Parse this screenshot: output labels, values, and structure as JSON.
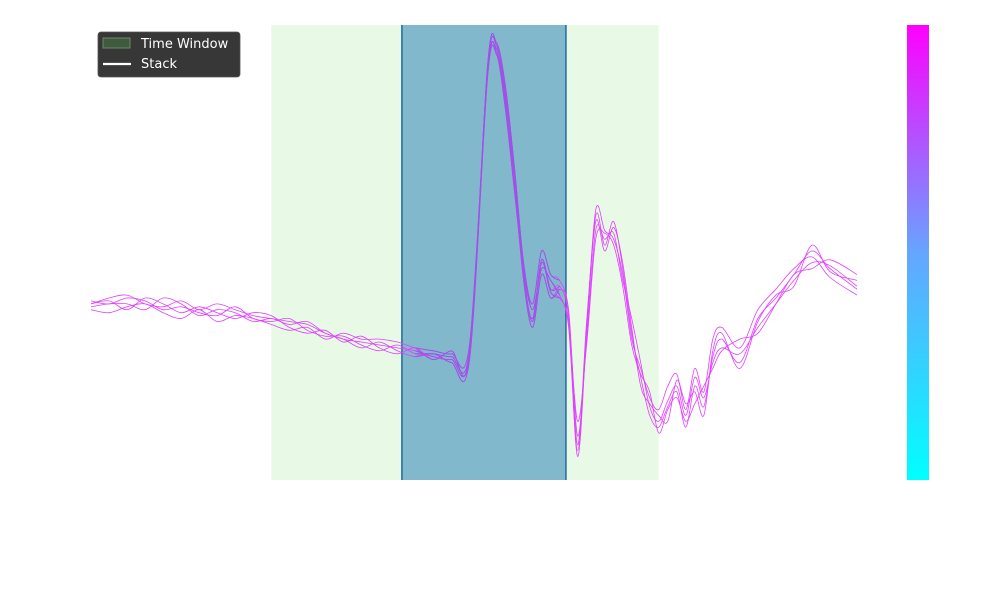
{
  "chart_data": {
    "type": "line",
    "title": "",
    "xlabel": "",
    "ylabel": "",
    "grid": false,
    "axes_visible": false,
    "legend_placement": "top-left",
    "legend": [
      {
        "label": "Time Window",
        "kind": "patch",
        "color": "#3f5a3f"
      },
      {
        "label": "Stack",
        "kind": "line",
        "color": "#ffffff"
      }
    ],
    "xlim": [
      0,
      850
    ],
    "ylim": [
      -0.6,
      0.95
    ],
    "regions": [
      {
        "name": "outer-window",
        "x": [
          200,
          630
        ],
        "color": "#e8fae6"
      },
      {
        "name": "inner-window",
        "x": [
          345,
          527
        ],
        "color": "#82b8cc",
        "edge_color": "#2b6fa8"
      }
    ],
    "colorbar": {
      "colors": [
        "#00ffff",
        "#66a5ff",
        "#ff00ff"
      ]
    },
    "trace_color": "#e040ff",
    "trace_color_window": "#9a52e6",
    "traces": [
      {
        "x": [
          0,
          20,
          40,
          60,
          80,
          100,
          120,
          140,
          160,
          180,
          200,
          220,
          240,
          260,
          280,
          300,
          320,
          340,
          360,
          380,
          400,
          420,
          440,
          450,
          460,
          470,
          480,
          490,
          500,
          510,
          520,
          530,
          540,
          550,
          560,
          570,
          580,
          590,
          600,
          610,
          620,
          630,
          640,
          650,
          660,
          670,
          680,
          690,
          700,
          720,
          740,
          760,
          780,
          800,
          820,
          850
        ],
        "y": [
          0,
          0.02,
          0.03,
          0,
          -0.01,
          0.01,
          -0.02,
          0.0,
          -0.02,
          -0.04,
          -0.05,
          -0.06,
          -0.07,
          -0.1,
          -0.12,
          -0.13,
          -0.14,
          -0.15,
          -0.16,
          -0.18,
          -0.19,
          -0.17,
          0.8,
          0.88,
          0.7,
          0.45,
          0.1,
          -0.05,
          0.15,
          0.05,
          0.06,
          -0.05,
          -0.52,
          -0.1,
          0.3,
          0.2,
          0.28,
          0.12,
          -0.1,
          -0.25,
          -0.38,
          -0.42,
          -0.35,
          -0.3,
          -0.42,
          -0.28,
          -0.35,
          -0.18,
          -0.12,
          -0.2,
          -0.05,
          0.02,
          0.1,
          0.18,
          0.12,
          0.05
        ]
      },
      {
        "x": [
          0,
          20,
          40,
          60,
          80,
          100,
          120,
          140,
          160,
          180,
          200,
          220,
          240,
          260,
          280,
          300,
          320,
          340,
          360,
          380,
          400,
          420,
          440,
          450,
          460,
          470,
          480,
          490,
          500,
          510,
          520,
          530,
          540,
          550,
          560,
          570,
          580,
          590,
          600,
          610,
          620,
          630,
          640,
          650,
          660,
          670,
          680,
          690,
          700,
          720,
          740,
          760,
          780,
          800,
          820,
          850
        ],
        "y": [
          0.01,
          0.0,
          0.02,
          0.01,
          -0.02,
          -0.01,
          -0.03,
          -0.04,
          -0.01,
          -0.05,
          -0.06,
          -0.05,
          -0.09,
          -0.11,
          -0.11,
          -0.14,
          -0.16,
          -0.14,
          -0.17,
          -0.17,
          -0.18,
          -0.16,
          0.78,
          0.87,
          0.72,
          0.42,
          0.12,
          -0.02,
          0.12,
          0.08,
          0.03,
          -0.08,
          -0.5,
          -0.08,
          0.32,
          0.25,
          0.22,
          0.1,
          -0.12,
          -0.22,
          -0.32,
          -0.36,
          -0.28,
          -0.24,
          -0.36,
          -0.22,
          -0.3,
          -0.12,
          -0.08,
          -0.15,
          -0.02,
          0.05,
          0.12,
          0.16,
          0.09,
          0.03
        ]
      },
      {
        "x": [
          0,
          20,
          40,
          60,
          80,
          100,
          120,
          140,
          160,
          180,
          200,
          220,
          240,
          260,
          280,
          300,
          320,
          340,
          360,
          380,
          400,
          420,
          440,
          450,
          460,
          470,
          480,
          490,
          500,
          510,
          520,
          530,
          540,
          550,
          560,
          570,
          580,
          590,
          600,
          610,
          620,
          630,
          640,
          650,
          660,
          670,
          680,
          690,
          700,
          720,
          740,
          760,
          780,
          800,
          820,
          850
        ],
        "y": [
          -0.02,
          -0.03,
          -0.01,
          0.0,
          -0.03,
          -0.05,
          -0.02,
          -0.06,
          -0.04,
          -0.05,
          -0.07,
          -0.09,
          -0.08,
          -0.12,
          -0.1,
          -0.12,
          -0.12,
          -0.13,
          -0.15,
          -0.16,
          -0.17,
          -0.14,
          0.79,
          0.86,
          0.68,
          0.4,
          0.08,
          -0.08,
          0.1,
          0.02,
          0.05,
          -0.02,
          -0.45,
          -0.12,
          0.25,
          0.22,
          0.24,
          0.08,
          -0.05,
          -0.2,
          -0.35,
          -0.4,
          -0.33,
          -0.28,
          -0.38,
          -0.25,
          -0.32,
          -0.2,
          -0.15,
          -0.17,
          -0.08,
          0.0,
          0.08,
          0.14,
          0.13,
          0.06
        ]
      },
      {
        "x": [
          0,
          20,
          40,
          60,
          80,
          100,
          120,
          140,
          160,
          180,
          200,
          220,
          240,
          260,
          280,
          300,
          320,
          340,
          360,
          380,
          400,
          420,
          440,
          450,
          460,
          470,
          480,
          490,
          500,
          510,
          520,
          530,
          540,
          550,
          560,
          570,
          580,
          590,
          600,
          610,
          620,
          630,
          640,
          650,
          660,
          670,
          680,
          690,
          700,
          720,
          740,
          760,
          780,
          800,
          820,
          850
        ],
        "y": [
          0.0,
          0.01,
          -0.02,
          0.02,
          0.0,
          -0.03,
          -0.01,
          -0.03,
          -0.05,
          -0.03,
          -0.04,
          -0.08,
          -0.1,
          -0.09,
          -0.13,
          -0.11,
          -0.15,
          -0.17,
          -0.15,
          -0.19,
          -0.16,
          -0.18,
          0.81,
          0.89,
          0.74,
          0.46,
          0.14,
          0.0,
          0.18,
          0.1,
          0.08,
          -0.03,
          -0.48,
          -0.06,
          0.28,
          0.18,
          0.26,
          0.14,
          -0.08,
          -0.28,
          -0.34,
          -0.38,
          -0.4,
          -0.26,
          -0.34,
          -0.3,
          -0.38,
          -0.16,
          -0.1,
          -0.22,
          -0.06,
          0.03,
          0.06,
          0.2,
          0.11,
          0.08
        ]
      },
      {
        "x": [
          0,
          20,
          40,
          60,
          80,
          100,
          120,
          140,
          160,
          180,
          200,
          220,
          240,
          260,
          280,
          300,
          320,
          340,
          360,
          380,
          400,
          420,
          440,
          450,
          460,
          470,
          480,
          490,
          500,
          510,
          520,
          530,
          540,
          550,
          560,
          570,
          580,
          590,
          600,
          610,
          620,
          630,
          640,
          650,
          660,
          670,
          680,
          690,
          700,
          720,
          740,
          760,
          780,
          800,
          820,
          850
        ],
        "y": [
          -0.01,
          0.0,
          0.0,
          -0.02,
          0.02,
          0.0,
          -0.04,
          -0.02,
          -0.03,
          -0.06,
          -0.05,
          -0.07,
          -0.06,
          -0.1,
          -0.12,
          -0.15,
          -0.13,
          -0.16,
          -0.18,
          -0.17,
          -0.2,
          -0.19,
          0.77,
          0.85,
          0.66,
          0.38,
          0.1,
          -0.06,
          0.14,
          0.04,
          0.02,
          -0.06,
          -0.4,
          -0.14,
          0.22,
          0.24,
          0.2,
          0.06,
          -0.14,
          -0.24,
          -0.3,
          -0.44,
          -0.36,
          -0.32,
          -0.4,
          -0.34,
          -0.28,
          -0.22,
          -0.16,
          -0.12,
          -0.1,
          0.0,
          0.1,
          0.12,
          0.15,
          0.1
        ]
      }
    ]
  }
}
